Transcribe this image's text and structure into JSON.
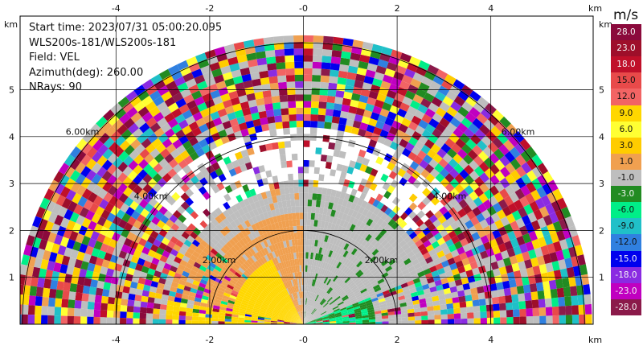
{
  "info": {
    "start_time": "Start time: 2023/07/31 05:00:20.095",
    "site": "WLS200s-181/WLS200s-181",
    "field": "Field: VEL",
    "azimuth": "Azimuth(deg): 260.00",
    "nrays": "NRays: 90"
  },
  "colorbar": {
    "unit": "m/s",
    "entries": [
      {
        "label": "28.0",
        "color": "#8b0a3c"
      },
      {
        "label": "23.0",
        "color": "#9e0f2a"
      },
      {
        "label": "18.0",
        "color": "#c0102a"
      },
      {
        "label": "15.0",
        "color": "#e84a4a"
      },
      {
        "label": "12.0",
        "color": "#f26464"
      },
      {
        "label": "9.0",
        "color": "#ffd700"
      },
      {
        "label": "6.0",
        "color": "#ffff33"
      },
      {
        "label": "3.0",
        "color": "#ffcc00"
      },
      {
        "label": "1.0",
        "color": "#f0a050"
      },
      {
        "label": "-1.0",
        "color": "#bebebe"
      },
      {
        "label": "-3.0",
        "color": "#228b22"
      },
      {
        "label": "-6.0",
        "color": "#00ee88"
      },
      {
        "label": "-9.0",
        "color": "#20c0c8"
      },
      {
        "label": "-12.0",
        "color": "#3080e0"
      },
      {
        "label": "-15.0",
        "color": "#0000ee"
      },
      {
        "label": "-18.0",
        "color": "#8a2be2"
      },
      {
        "label": "-23.0",
        "color": "#c000c0"
      },
      {
        "label": "-28.0",
        "color": "#8b1a4a"
      }
    ]
  },
  "chart_data": {
    "type": "ppi-rhi-radar",
    "field": "VEL",
    "x_unit": "km",
    "y_unit": "km",
    "xlim": [
      -6.0,
      6.0
    ],
    "ylim": [
      0,
      5.9
    ],
    "x_ticks": [
      "-4",
      "-2",
      "-0",
      "2",
      "4"
    ],
    "x_tick_values": [
      -4,
      -2,
      0,
      2,
      4
    ],
    "y_ticks": [
      "1",
      "2",
      "3",
      "4",
      "5"
    ],
    "y_tick_values": [
      1,
      2,
      3,
      4,
      5
    ],
    "range_rings_km": [
      2.0,
      4.0,
      6.0
    ],
    "ring_labels": [
      "2.00km",
      "4.00km",
      "6.00km"
    ],
    "grid": true
  }
}
